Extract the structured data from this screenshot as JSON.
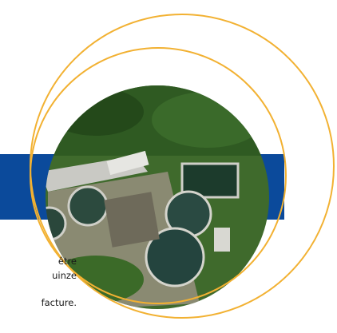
{
  "text": {
    "lines": [
      "être",
      "uinze",
      "facture."
    ]
  }
}
